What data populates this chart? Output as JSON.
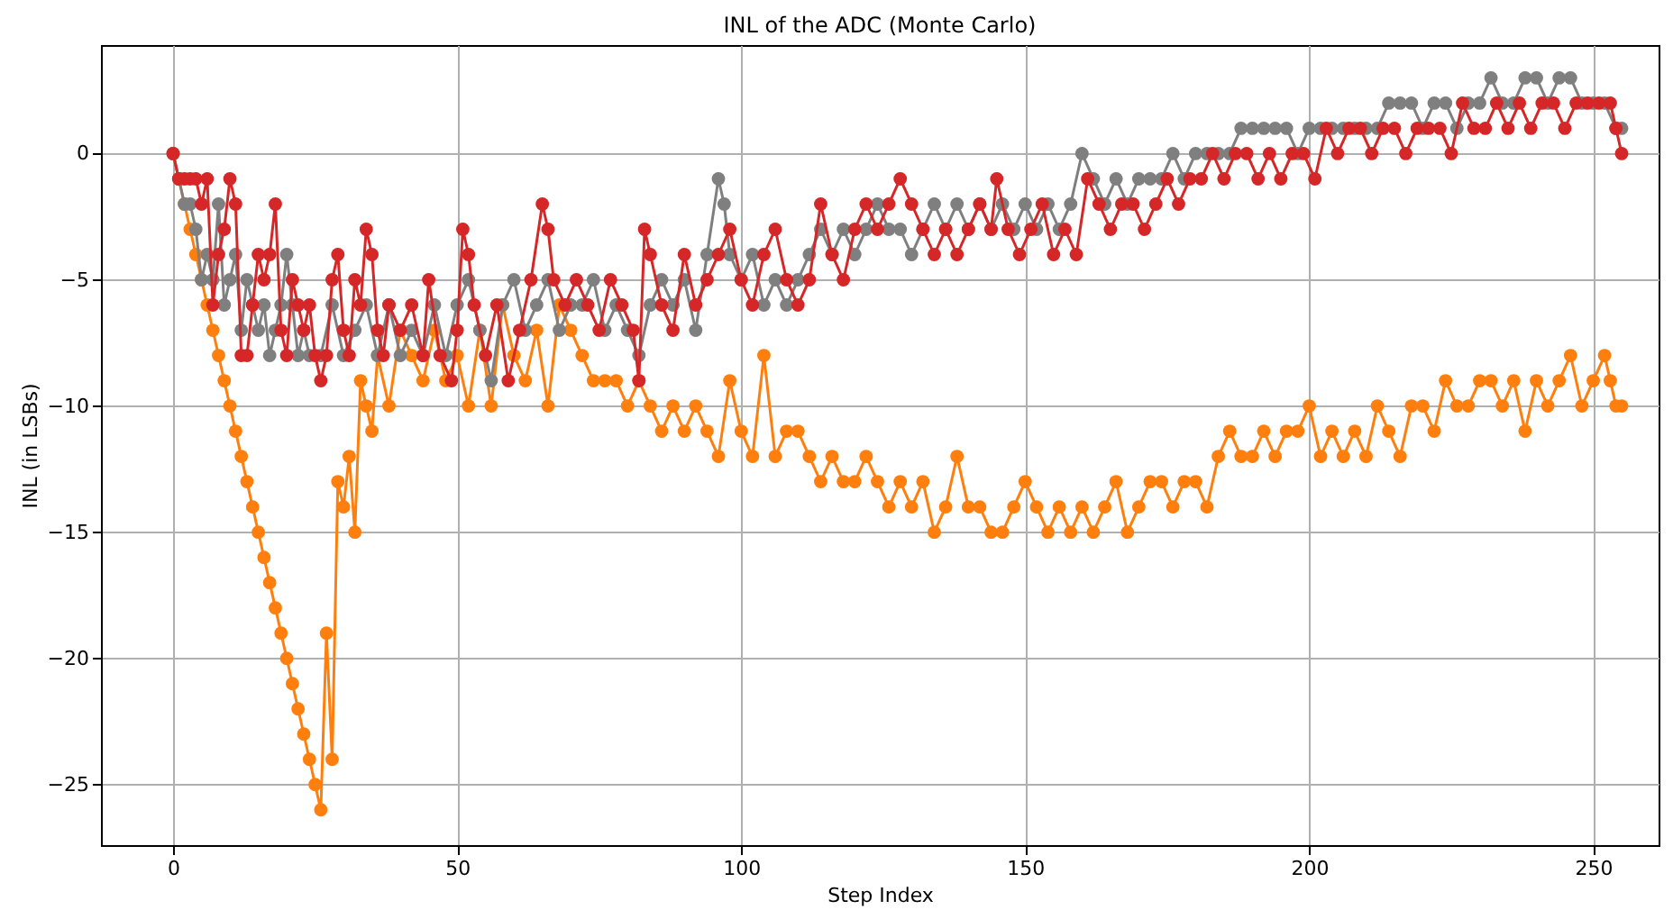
{
  "chart_data": {
    "type": "line",
    "title": "INL of the ADC (Monte Carlo)",
    "xlabel": "Step Index",
    "ylabel": "INL (in LSBs)",
    "xlim": [
      -12.7,
      261.5
    ],
    "ylim": [
      -27.4,
      4.3
    ],
    "xticks": [
      0,
      50,
      100,
      150,
      200,
      250
    ],
    "yticks": [
      {
        "value": -25,
        "label": "−25"
      },
      {
        "value": -20,
        "label": "−20"
      },
      {
        "value": -15,
        "label": "−15"
      },
      {
        "value": -10,
        "label": "−10"
      },
      {
        "value": -5,
        "label": "−5"
      },
      0
    ],
    "grid": true,
    "marker": "circle",
    "line_style": "solid",
    "series": [
      {
        "color": "#ff7f0e",
        "x": [
          0,
          1,
          2,
          3,
          4,
          5,
          6,
          7,
          8,
          9,
          10,
          11,
          12,
          13,
          14,
          15,
          16,
          17,
          18,
          19,
          20,
          21,
          22,
          23,
          24,
          25,
          26,
          27,
          28,
          29,
          30,
          31,
          32,
          33,
          34,
          35,
          36,
          38,
          40,
          42,
          44,
          46,
          48,
          50,
          52,
          54,
          56,
          58,
          60,
          62,
          64,
          66,
          68,
          70,
          72,
          74,
          76,
          78,
          80,
          82,
          84,
          86,
          88,
          90,
          92,
          94,
          96,
          98,
          100,
          102,
          104,
          106,
          108,
          110,
          112,
          114,
          116,
          118,
          120,
          122,
          124,
          126,
          128,
          130,
          132,
          134,
          136,
          138,
          140,
          142,
          144,
          146,
          148,
          150,
          152,
          154,
          156,
          158,
          160,
          162,
          164,
          166,
          168,
          170,
          172,
          174,
          176,
          178,
          180,
          182,
          184,
          186,
          188,
          190,
          192,
          194,
          196,
          198,
          200,
          202,
          204,
          206,
          208,
          210,
          212,
          214,
          216,
          218,
          220,
          222,
          224,
          226,
          228,
          230,
          232,
          234,
          236,
          238,
          240,
          242,
          244,
          246,
          248,
          250,
          252,
          253,
          254,
          255
        ],
        "values": [
          0,
          -1,
          -2,
          -3,
          -4,
          -5,
          -6,
          -7,
          -8,
          -9,
          -10,
          -11,
          -12,
          -13,
          -14,
          -15,
          -16,
          -17,
          -18,
          -19,
          -20,
          -21,
          -22,
          -23,
          -24,
          -25,
          -26,
          -19,
          -24,
          -13,
          -14,
          -12,
          -15,
          -9,
          -10,
          -11,
          -8,
          -10,
          -7,
          -8,
          -9,
          -7,
          -9,
          -8,
          -10,
          -7,
          -10,
          -6,
          -8,
          -9,
          -7,
          -10,
          -6,
          -7,
          -8,
          -9,
          -9,
          -9,
          -10,
          -9,
          -10,
          -11,
          -10,
          -11,
          -10,
          -11,
          -12,
          -9,
          -11,
          -12,
          -8,
          -12,
          -11,
          -11,
          -12,
          -13,
          -12,
          -13,
          -13,
          -12,
          -13,
          -14,
          -13,
          -14,
          -13,
          -15,
          -14,
          -12,
          -14,
          -14,
          -15,
          -15,
          -14,
          -13,
          -14,
          -15,
          -14,
          -15,
          -14,
          -15,
          -14,
          -13,
          -15,
          -14,
          -13,
          -13,
          -14,
          -13,
          -13,
          -14,
          -12,
          -11,
          -12,
          -12,
          -11,
          -12,
          -11,
          -11,
          -10,
          -12,
          -11,
          -12,
          -11,
          -12,
          -10,
          -11,
          -12,
          -10,
          -10,
          -11,
          -9,
          -10,
          -10,
          -9,
          -9,
          -10,
          -9,
          -11,
          -9,
          -10,
          -9,
          -8,
          -10,
          -9,
          -8,
          -9,
          -10,
          -10
        ]
      },
      {
        "color": "#7f7f7f",
        "x": [
          0,
          1,
          2,
          3,
          4,
          5,
          6,
          7,
          8,
          9,
          10,
          11,
          12,
          13,
          14,
          15,
          16,
          17,
          18,
          19,
          20,
          21,
          22,
          23,
          24,
          26,
          28,
          30,
          32,
          34,
          36,
          38,
          40,
          42,
          44,
          46,
          48,
          50,
          52,
          54,
          56,
          58,
          60,
          62,
          64,
          66,
          68,
          70,
          72,
          74,
          76,
          78,
          80,
          82,
          84,
          86,
          88,
          90,
          92,
          94,
          96,
          97,
          98,
          100,
          102,
          104,
          106,
          108,
          110,
          112,
          114,
          116,
          118,
          120,
          122,
          124,
          126,
          128,
          130,
          132,
          134,
          136,
          138,
          140,
          142,
          144,
          146,
          148,
          150,
          152,
          154,
          156,
          158,
          160,
          162,
          164,
          166,
          168,
          170,
          172,
          174,
          176,
          178,
          180,
          182,
          184,
          186,
          188,
          190,
          192,
          194,
          196,
          198,
          200,
          202,
          204,
          206,
          208,
          210,
          212,
          214,
          216,
          218,
          220,
          222,
          224,
          226,
          228,
          230,
          232,
          234,
          236,
          238,
          240,
          242,
          244,
          246,
          248,
          250,
          252,
          254,
          255
        ],
        "values": [
          0,
          -1,
          -2,
          -2,
          -3,
          -5,
          -4,
          -5,
          -2,
          -6,
          -5,
          -4,
          -7,
          -5,
          -6,
          -7,
          -6,
          -8,
          -7,
          -6,
          -4,
          -6,
          -8,
          -7,
          -8,
          -8,
          -6,
          -8,
          -7,
          -6,
          -8,
          -6,
          -8,
          -7,
          -8,
          -6,
          -8,
          -6,
          -5,
          -7,
          -9,
          -6,
          -5,
          -7,
          -6,
          -5,
          -7,
          -6,
          -6,
          -5,
          -7,
          -6,
          -7,
          -8,
          -6,
          -5,
          -6,
          -5,
          -7,
          -4,
          -1,
          -2,
          -4,
          -5,
          -4,
          -6,
          -5,
          -6,
          -5,
          -4,
          -3,
          -4,
          -3,
          -4,
          -3,
          -2,
          -3,
          -3,
          -4,
          -3,
          -2,
          -3,
          -2,
          -3,
          -2,
          -3,
          -2,
          -3,
          -2,
          -3,
          -2,
          -3,
          -2,
          0,
          -1,
          -2,
          -1,
          -2,
          -1,
          -1,
          -1,
          0,
          -1,
          0,
          0,
          0,
          0,
          1,
          1,
          1,
          1,
          1,
          0,
          1,
          1,
          1,
          1,
          1,
          1,
          1,
          2,
          2,
          2,
          1,
          2,
          2,
          1,
          2,
          2,
          3,
          2,
          2,
          3,
          3,
          2,
          3,
          3,
          2,
          2,
          2,
          1,
          1
        ]
      },
      {
        "color": "#d62728",
        "x": [
          0,
          1,
          2,
          3,
          4,
          5,
          6,
          7,
          8,
          9,
          10,
          11,
          12,
          13,
          14,
          15,
          16,
          17,
          18,
          19,
          20,
          21,
          22,
          23,
          24,
          25,
          26,
          27,
          28,
          29,
          30,
          31,
          32,
          33,
          34,
          35,
          36,
          37,
          38,
          40,
          42,
          44,
          45,
          47,
          49,
          50,
          51,
          52,
          53,
          55,
          57,
          59,
          61,
          63,
          65,
          66,
          67,
          69,
          71,
          73,
          75,
          77,
          79,
          81,
          82,
          83,
          84,
          86,
          88,
          90,
          92,
          94,
          96,
          98,
          100,
          102,
          104,
          106,
          108,
          110,
          112,
          114,
          116,
          118,
          120,
          122,
          124,
          126,
          128,
          130,
          132,
          134,
          136,
          138,
          140,
          142,
          144,
          145,
          147,
          149,
          151,
          153,
          155,
          157,
          159,
          161,
          163,
          165,
          167,
          169,
          171,
          173,
          175,
          177,
          179,
          181,
          183,
          185,
          187,
          189,
          191,
          193,
          195,
          197,
          199,
          201,
          203,
          205,
          207,
          209,
          211,
          213,
          215,
          217,
          219,
          221,
          223,
          225,
          227,
          229,
          231,
          233,
          235,
          237,
          239,
          241,
          243,
          245,
          247,
          249,
          251,
          253,
          254,
          255
        ],
        "values": [
          0,
          -1,
          -1,
          -1,
          -1,
          -2,
          -1,
          -6,
          -4,
          -3,
          -1,
          -2,
          -8,
          -8,
          -6,
          -4,
          -5,
          -4,
          -2,
          -7,
          -8,
          -5,
          -6,
          -7,
          -6,
          -8,
          -9,
          -8,
          -5,
          -4,
          -7,
          -8,
          -5,
          -6,
          -3,
          -4,
          -7,
          -8,
          -6,
          -7,
          -6,
          -8,
          -5,
          -8,
          -9,
          -7,
          -3,
          -4,
          -6,
          -8,
          -6,
          -9,
          -7,
          -5,
          -2,
          -3,
          -5,
          -6,
          -5,
          -6,
          -7,
          -5,
          -6,
          -7,
          -9,
          -3,
          -4,
          -6,
          -7,
          -4,
          -6,
          -5,
          -4,
          -3,
          -5,
          -6,
          -4,
          -3,
          -5,
          -6,
          -5,
          -2,
          -4,
          -5,
          -3,
          -2,
          -3,
          -2,
          -1,
          -2,
          -3,
          -4,
          -3,
          -4,
          -3,
          -2,
          -3,
          -1,
          -3,
          -4,
          -3,
          -2,
          -4,
          -3,
          -4,
          -1,
          -2,
          -3,
          -2,
          -2,
          -3,
          -2,
          -1,
          -2,
          -1,
          -1,
          0,
          -1,
          0,
          0,
          -1,
          0,
          -1,
          0,
          0,
          -1,
          1,
          0,
          1,
          1,
          0,
          1,
          1,
          0,
          1,
          1,
          1,
          0,
          2,
          1,
          1,
          2,
          1,
          2,
          1,
          2,
          2,
          1,
          2,
          2,
          2,
          2,
          1,
          0
        ]
      }
    ]
  }
}
